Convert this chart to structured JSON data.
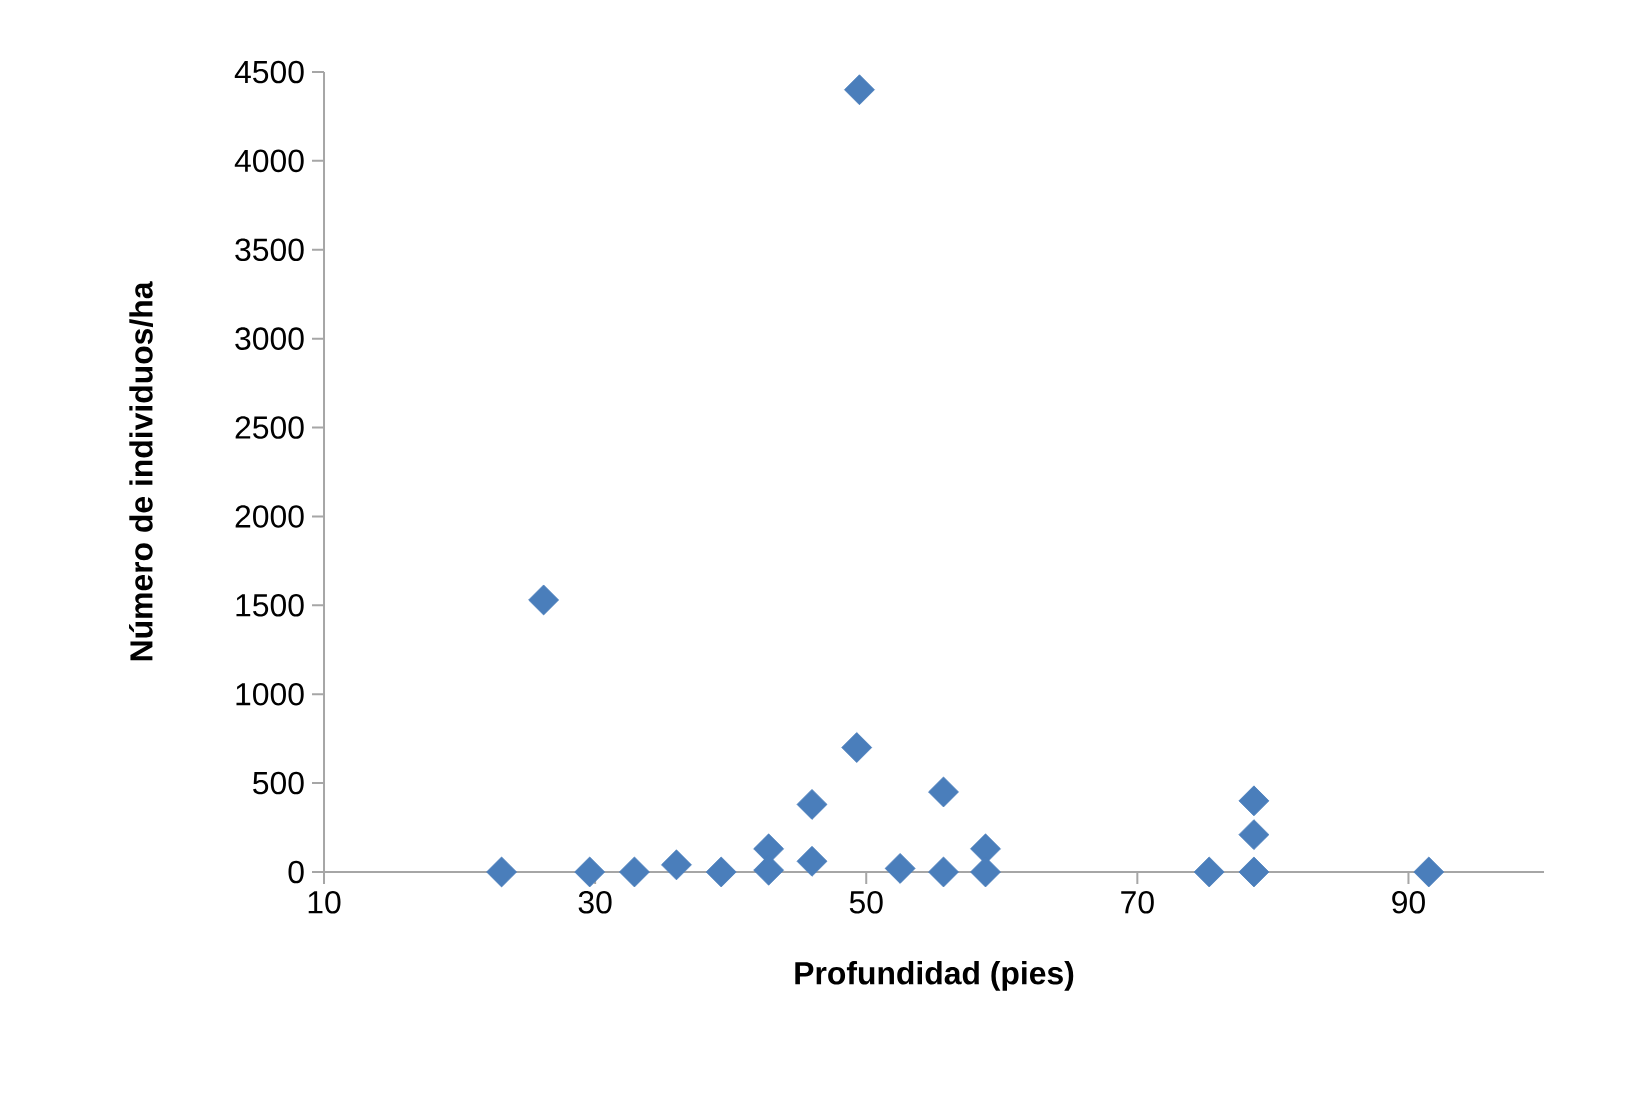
{
  "chart_data": {
    "type": "scatter",
    "xlabel": "Profundidad (pies)",
    "ylabel": "Número de individuos/ha",
    "x": [
      26.2,
      23.1,
      29.6,
      32.9,
      36.0,
      39.3,
      42.8,
      42.8,
      46.0,
      46.0,
      49.3,
      49.5,
      52.5,
      55.7,
      55.7,
      58.8,
      58.8,
      75.3,
      78.6,
      78.6,
      78.6,
      91.5
    ],
    "series": [
      {
        "color": "#4a7ebb",
        "values": [
          1530,
          0,
          0,
          0,
          40,
          0,
          130,
          10,
          380,
          60,
          700,
          4400,
          20,
          450,
          0,
          130,
          0,
          0,
          400,
          210,
          0,
          0
        ]
      }
    ],
    "xlim": [
      10,
      100
    ],
    "xticks": [
      10,
      30,
      50,
      70,
      90
    ],
    "ylim": [
      0,
      4500
    ],
    "yticks": [
      0,
      500,
      1000,
      1500,
      2000,
      2500,
      3000,
      3500,
      4000,
      4500
    ],
    "marker": "diamond"
  }
}
